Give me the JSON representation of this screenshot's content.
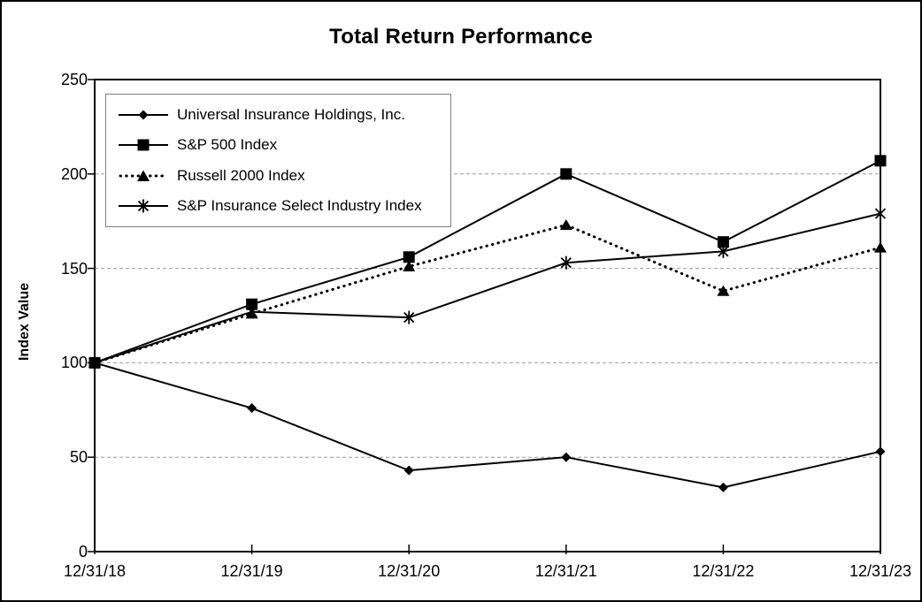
{
  "title": "Total Return Performance",
  "y_axis_label": "Index Value",
  "chart_data": {
    "type": "line",
    "title": "Total Return Performance",
    "xlabel": "",
    "ylabel": "Index Value",
    "ylim": [
      0,
      250
    ],
    "y_ticks": [
      0,
      50,
      100,
      150,
      200,
      250
    ],
    "grid": "horizontal dashed gridlines at 50, 100, 150, 200",
    "legend_position": "top-left inside plot",
    "categories": [
      "12/31/18",
      "12/31/19",
      "12/31/20",
      "12/31/21",
      "12/31/22",
      "12/31/23"
    ],
    "series": [
      {
        "name": "Universal Insurance Holdings, Inc.",
        "marker": "diamond",
        "line": "solid",
        "values": [
          100,
          76,
          43,
          50,
          34,
          53
        ]
      },
      {
        "name": "S&P 500 Index",
        "marker": "square",
        "line": "solid",
        "values": [
          100,
          131,
          156,
          200,
          164,
          207
        ]
      },
      {
        "name": "Russell 2000 Index",
        "marker": "triangle",
        "line": "dotted",
        "values": [
          100,
          126,
          151,
          173,
          138,
          161
        ]
      },
      {
        "name": "S&P Insurance Select Industry Index",
        "marker": "star",
        "line": "solid",
        "values": [
          100,
          127,
          124,
          153,
          159,
          179
        ]
      }
    ],
    "colors": {
      "series": "#000000",
      "grid": "#999999",
      "legend_border": "#808080",
      "background": "#ffffff"
    }
  }
}
